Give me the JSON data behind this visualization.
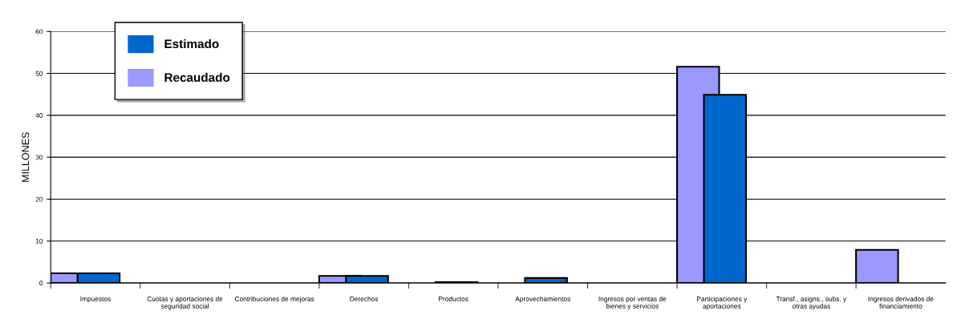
{
  "chart_data": {
    "type": "bar",
    "ylabel": "MILLONES",
    "categories": [
      "Impuestos",
      "Cuotas y aportaciones de seguridad social",
      "Contribuciones de mejoras",
      "Derechos",
      "Productos",
      "Aprovechamientos",
      "Ingresos por ventas de bienes y servicios",
      "Participaciones y aportaciones",
      "Transf., asigns., subs. y otras ayudas",
      "Ingresos derivados de financiamiento"
    ],
    "series": [
      {
        "name": "Recaudado",
        "color": "#9999ff",
        "values": [
          2.3,
          null,
          null,
          1.7,
          null,
          null,
          null,
          51.6,
          null,
          7.9
        ]
      },
      {
        "name": "Estimado",
        "color": "#0066cc",
        "values": [
          2.3,
          null,
          null,
          1.7,
          0.2,
          1.2,
          null,
          44.9,
          null,
          null
        ]
      }
    ],
    "ylim": [
      0,
      60
    ],
    "yticks": [
      0,
      10,
      20,
      30,
      40,
      50,
      60
    ],
    "grid": "y",
    "legend": "top left"
  }
}
